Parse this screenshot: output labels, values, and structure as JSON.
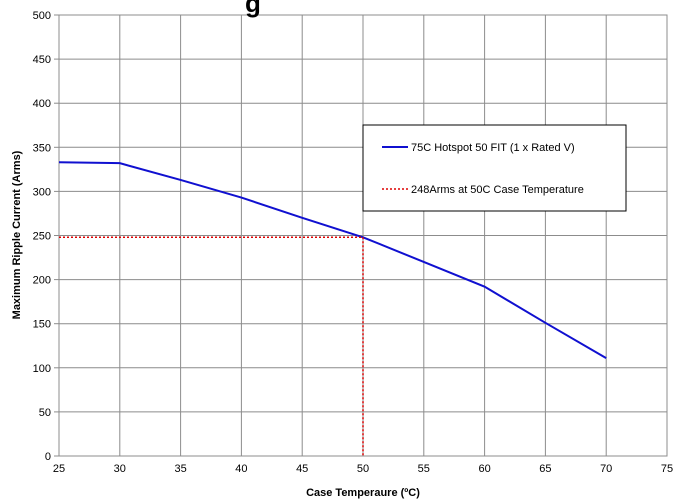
{
  "chart_data": {
    "type": "line",
    "title": "g",
    "xlabel": "Case Temperaure (ºC)",
    "ylabel": "Maximum Ripple Current (Arms)",
    "xlim": [
      25,
      75
    ],
    "ylim": [
      0,
      500
    ],
    "x_ticks": [
      25,
      30,
      35,
      40,
      45,
      50,
      55,
      60,
      65,
      70,
      75
    ],
    "y_ticks": [
      0,
      50,
      100,
      150,
      200,
      250,
      300,
      350,
      400,
      450,
      500
    ],
    "grid": true,
    "legend_position": "right",
    "series": [
      {
        "name": "75C Hotspot 50 FIT (1 x Rated V)",
        "color": "#1010d0",
        "style": "solid",
        "points": [
          [
            25,
            333
          ],
          [
            30,
            332
          ],
          [
            35,
            313
          ],
          [
            40,
            293
          ],
          [
            45,
            270
          ],
          [
            50,
            248
          ],
          [
            55,
            220
          ],
          [
            60,
            192
          ],
          [
            65,
            151
          ],
          [
            70,
            111
          ]
        ]
      },
      {
        "name": "248Arms at 50C Case Temperature",
        "color": "#dd0000",
        "style": "dotted",
        "points": [
          [
            25,
            248
          ],
          [
            50,
            248
          ],
          [
            50,
            0
          ]
        ]
      }
    ]
  }
}
